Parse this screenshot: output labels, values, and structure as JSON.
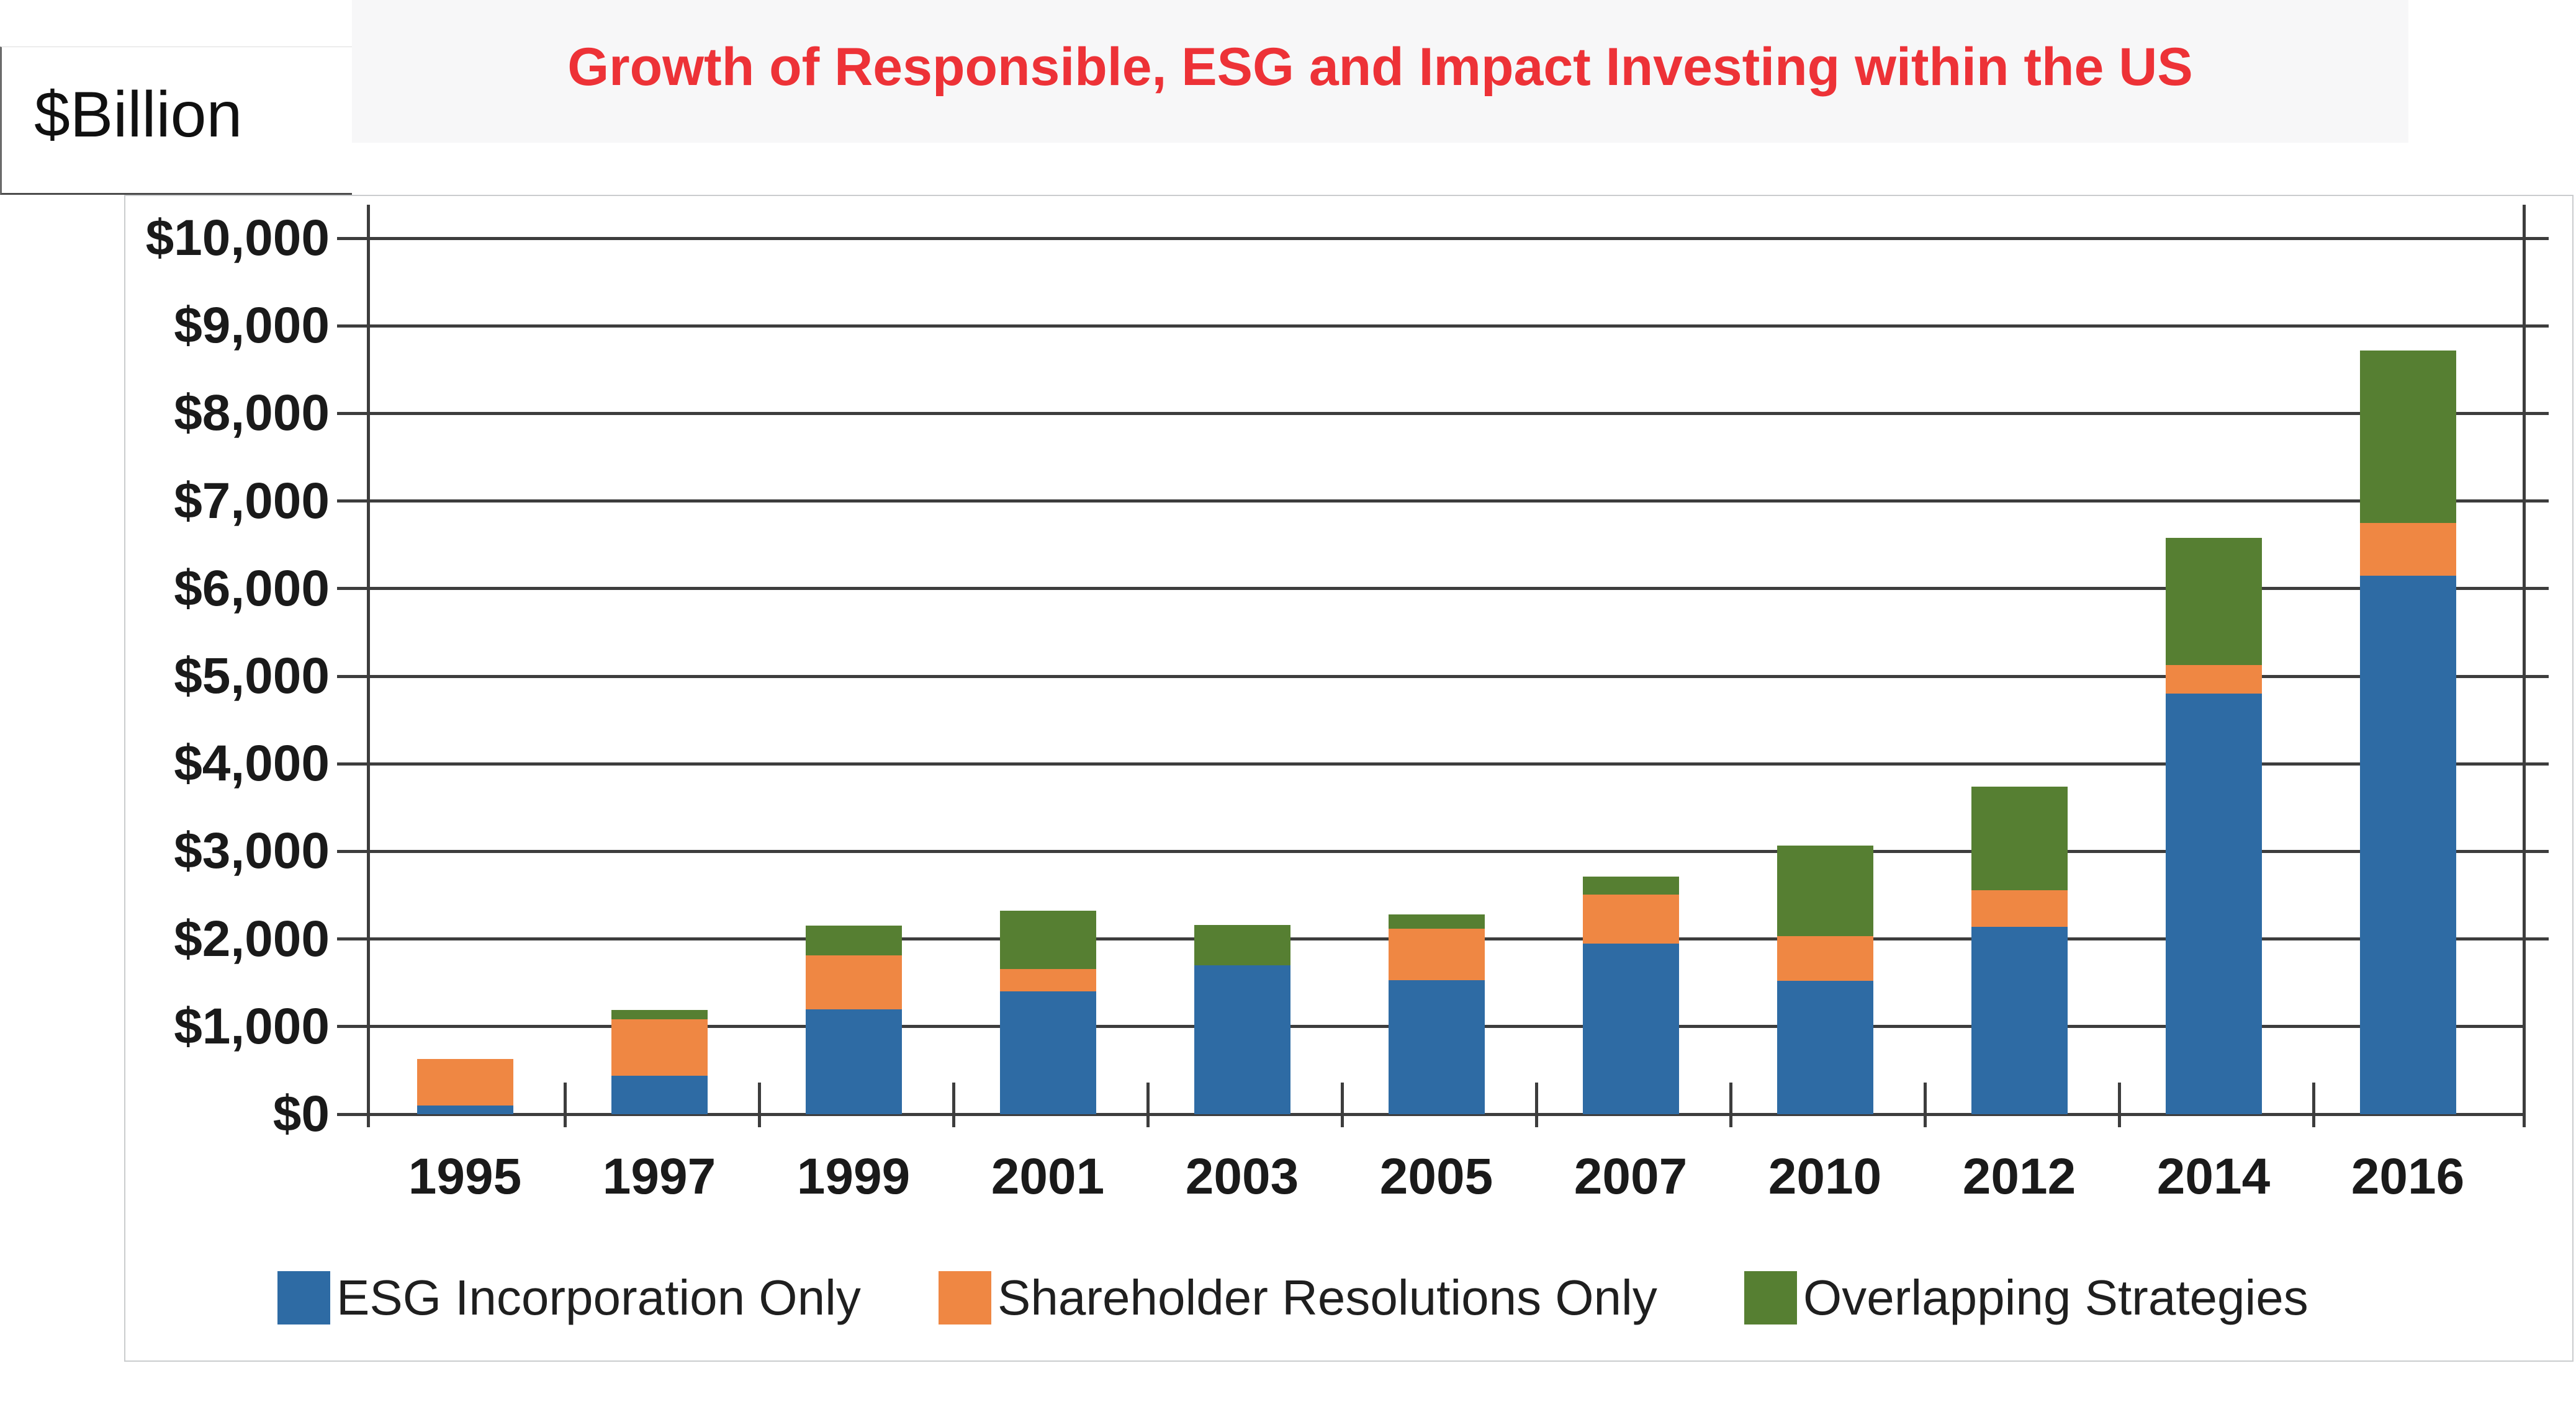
{
  "title": {
    "text": "Growth of Responsible, ESG and Impact Investing within the US",
    "color": "#ED3237"
  },
  "units_label": "$Billion",
  "chart_data": {
    "type": "bar",
    "stacked": true,
    "title": "Growth of Responsible, ESG and Impact Investing within the US",
    "xlabel": "",
    "ylabel": "$Billion",
    "categories": [
      "1995",
      "1997",
      "1999",
      "2001",
      "2003",
      "2005",
      "2007",
      "2010",
      "2012",
      "2014",
      "2016"
    ],
    "series": [
      {
        "name": "ESG Incorporation Only",
        "color": "#2E6BA4",
        "values": [
          100,
          440,
          1200,
          1400,
          1700,
          1530,
          1950,
          1520,
          2140,
          4800,
          6150
        ]
      },
      {
        "name": "Shareholder Resolutions Only",
        "color": "#EF8743",
        "values": [
          530,
          645,
          610,
          260,
          0,
          590,
          560,
          510,
          420,
          330,
          600
        ]
      },
      {
        "name": "Overlapping Strategies",
        "color": "#567F32",
        "values": [
          0,
          105,
          340,
          660,
          460,
          160,
          200,
          1040,
          1180,
          1450,
          1970
        ]
      }
    ],
    "totals": [
      630,
      1190,
      2150,
      2320,
      2160,
      2280,
      2710,
      3070,
      3740,
      6580,
      8720
    ],
    "ylim": [
      0,
      10000
    ],
    "y_tick_step": 1000,
    "y_tick_labels": [
      "$0",
      "$1,000",
      "$2,000",
      "$3,000",
      "$4,000",
      "$5,000",
      "$6,000",
      "$7,000",
      "$8,000",
      "$9,000",
      "$10,000"
    ],
    "grid": true,
    "legend_position": "bottom"
  },
  "theme": {
    "grid_color": "#3D3D3D",
    "axis_label_color": "#1A1A1A",
    "frame_border_color": "#CACCCE",
    "title_band_color": "#F7F7F8",
    "background_color": "#FFFFFF"
  }
}
